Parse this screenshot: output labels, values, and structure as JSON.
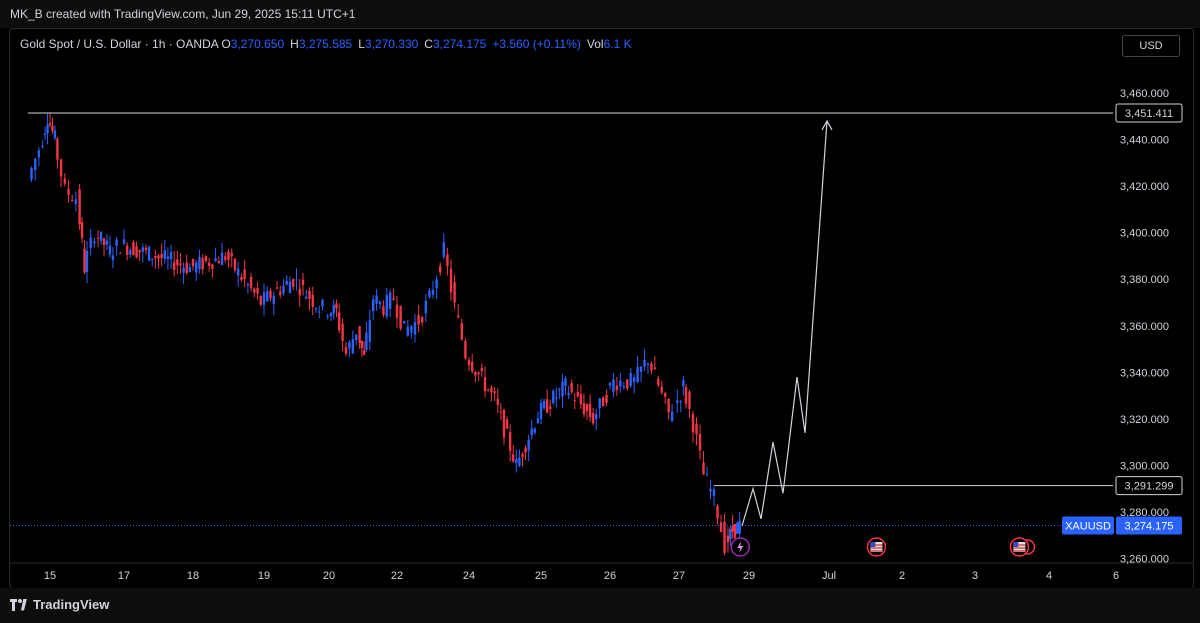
{
  "header": {
    "credit": "MK_B created with TradingView.com, Jun 29, 2025 15:11 UTC+1"
  },
  "legend": {
    "title": "Gold Spot / U.S. Dollar · 1h · OANDA",
    "o_label": "O",
    "o_value": "3,270.650",
    "h_label": "H",
    "h_value": "3,275.585",
    "l_label": "L",
    "l_value": "3,270.330",
    "c_label": "C",
    "c_value": "3,274.175",
    "change": "+3.560 (+0.11%)",
    "vol_label": "Vol",
    "vol_value": "6.1 K"
  },
  "currency_button": "USD",
  "footer": {
    "brand": "TradingView"
  },
  "colors": {
    "up": "#2962ff",
    "down": "#f23645",
    "line": "#d1d4dc",
    "price_tag": "#2962ff",
    "grid": "#1a1a1a"
  },
  "chart_data": {
    "type": "candlestick",
    "symbol": "XAUUSD",
    "last_price": 3274.175,
    "y_axis": {
      "ticks": [
        3260,
        3280,
        3300,
        3320,
        3340,
        3360,
        3380,
        3400,
        3420,
        3440,
        3460
      ],
      "tick_labels": [
        "3,260.000",
        "3,280.000",
        "3,300.000",
        "3,320.000",
        "3,340.000",
        "3,360.000",
        "3,380.000",
        "3,400.000",
        "3,420.000",
        "3,440.000",
        "3,460.000"
      ],
      "range": [
        3250,
        3475
      ]
    },
    "x_axis": {
      "tick_labels": [
        "15",
        "17",
        "18",
        "19",
        "20",
        "22",
        "24",
        "25",
        "26",
        "27",
        "29",
        "Jul",
        "2",
        "3",
        "4",
        "6"
      ]
    },
    "price_path": [
      {
        "d": 14.5,
        "p": 3423
      },
      {
        "d": 14.8,
        "p": 3436
      },
      {
        "d": 15.0,
        "p": 3450
      },
      {
        "d": 15.2,
        "p": 3440
      },
      {
        "d": 15.5,
        "p": 3418
      },
      {
        "d": 15.8,
        "p": 3415
      },
      {
        "d": 16.0,
        "p": 3385
      },
      {
        "d": 16.3,
        "p": 3400
      },
      {
        "d": 16.7,
        "p": 3392
      },
      {
        "d": 17.0,
        "p": 3395
      },
      {
        "d": 17.5,
        "p": 3390
      },
      {
        "d": 18.0,
        "p": 3385
      },
      {
        "d": 18.5,
        "p": 3390
      },
      {
        "d": 19.0,
        "p": 3370
      },
      {
        "d": 19.5,
        "p": 3380
      },
      {
        "d": 19.9,
        "p": 3368
      },
      {
        "d": 20.3,
        "p": 3366
      },
      {
        "d": 20.6,
        "p": 3348
      },
      {
        "d": 20.9,
        "p": 3358
      },
      {
        "d": 21.1,
        "p": 3346
      },
      {
        "d": 21.4,
        "p": 3372
      },
      {
        "d": 21.7,
        "p": 3368
      },
      {
        "d": 22.0,
        "p": 3372
      },
      {
        "d": 22.3,
        "p": 3358
      },
      {
        "d": 22.7,
        "p": 3362
      },
      {
        "d": 23.0,
        "p": 3372
      },
      {
        "d": 23.4,
        "p": 3392
      },
      {
        "d": 23.7,
        "p": 3368
      },
      {
        "d": 24.0,
        "p": 3348
      },
      {
        "d": 24.4,
        "p": 3328
      },
      {
        "d": 24.7,
        "p": 3300
      },
      {
        "d": 25.0,
        "p": 3322
      },
      {
        "d": 25.4,
        "p": 3334
      },
      {
        "d": 25.8,
        "p": 3320
      },
      {
        "d": 26.1,
        "p": 3336
      },
      {
        "d": 26.4,
        "p": 3336
      },
      {
        "d": 26.6,
        "p": 3346
      },
      {
        "d": 26.9,
        "p": 3322
      },
      {
        "d": 27.2,
        "p": 3334
      },
      {
        "d": 27.5,
        "p": 3318
      },
      {
        "d": 27.8,
        "p": 3296
      },
      {
        "d": 28.1,
        "p": 3286
      },
      {
        "d": 28.4,
        "p": 3266
      },
      {
        "d": 28.6,
        "p": 3272
      },
      {
        "d": 28.8,
        "p": 3274
      }
    ],
    "levels": [
      {
        "label": "3,451.411",
        "value": 3451.411,
        "from": 14.4
      },
      {
        "label": "3,291.299",
        "value": 3291.299,
        "from": 28.0
      }
    ],
    "last_price_tag": {
      "symbol": "XAUUSD",
      "label": "3,274.175"
    },
    "projection": [
      {
        "d": 28.8,
        "p": 3274
      },
      {
        "d": 29.1,
        "p": 3290
      },
      {
        "d": 29.3,
        "p": 3277
      },
      {
        "d": 29.6,
        "p": 3310
      },
      {
        "d": 29.85,
        "p": 3288
      },
      {
        "d": 30.2,
        "p": 3338
      },
      {
        "d": 30.4,
        "p": 3314
      },
      {
        "d": 30.95,
        "p": 3448
      }
    ],
    "events": [
      {
        "icon": "lightning-event-icon",
        "d": 28.75
      },
      {
        "icon": "us-flag-event-icon",
        "d": 31.65
      },
      {
        "icon": "us-flag-event-icon",
        "d": 33.6
      }
    ]
  }
}
